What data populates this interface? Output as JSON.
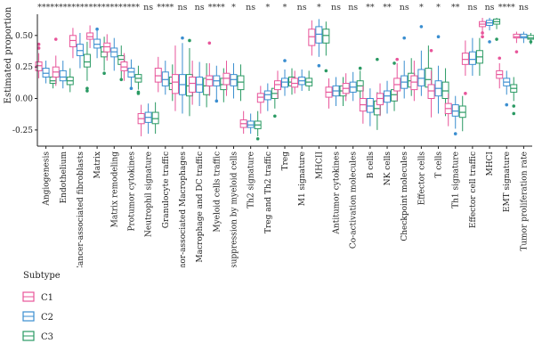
{
  "chart_data": {
    "type": "box",
    "title": "",
    "xlabel": "",
    "ylabel": "Estimated proportion",
    "ylim": [
      -0.35,
      0.64
    ],
    "yticks": [
      -0.25,
      0,
      0.25,
      0.5
    ],
    "ytick_labels": [
      "-0.25",
      "0.00",
      "0.25",
      "0.50"
    ],
    "grid": false,
    "legend_position": "bottom-left",
    "legend_title": "Subtype",
    "series": [
      {
        "name": "C1",
        "color": "#e8559a"
      },
      {
        "name": "C2",
        "color": "#3a8ed0"
      },
      {
        "name": "C3",
        "color": "#2a9a63"
      }
    ],
    "categories": [
      "Angiogenesis",
      "Endothelium",
      "Cancer-associated fibroblasts",
      "Matrix",
      "Matrix remodeling",
      "Protumor cytokines",
      "Neutrophil signature",
      "Granulocyte traffic",
      "Tumor-associated Macrophages",
      "Macrophage and DC traffic",
      "Myeloid cells traffic",
      "Immune suppression by myeloid cells",
      "Th2 signature",
      "Treg and Th2 traffic",
      "Treg",
      "M1 signature",
      "MHCII",
      "Antitumor cytokines",
      "Co-activation molecules",
      "B cells",
      "NK cells",
      "Checkpoint molecules",
      "Effector cells",
      "T cells",
      "Th1 signature",
      "Effector cell traffic",
      "MHCI",
      "EMT signature",
      "Tumor proliferation rate"
    ],
    "significance": [
      "****",
      "****",
      "****",
      "****",
      "****",
      "****",
      "ns",
      "****",
      "ns",
      "ns",
      "****",
      "*",
      "ns",
      "*",
      "*",
      "ns",
      "*",
      "ns",
      "ns",
      "**",
      "**",
      "ns",
      "*",
      "*",
      "**",
      "ns",
      "ns",
      "****",
      "ns"
    ],
    "boxes": [
      [
        [
          0.16,
          0.22,
          0.26,
          0.29,
          0.36
        ],
        [
          0.12,
          0.17,
          0.2,
          0.24,
          0.3
        ],
        [
          0.08,
          0.12,
          0.14,
          0.17,
          0.22
        ]
      ],
      [
        [
          0.1,
          0.17,
          0.21,
          0.25,
          0.34
        ],
        [
          0.08,
          0.14,
          0.17,
          0.22,
          0.3
        ],
        [
          0.05,
          0.11,
          0.14,
          0.17,
          0.24
        ]
      ],
      [
        [
          0.32,
          0.41,
          0.46,
          0.5,
          0.56
        ],
        [
          0.24,
          0.34,
          0.38,
          0.43,
          0.52
        ],
        [
          0.14,
          0.25,
          0.29,
          0.35,
          0.45
        ]
      ],
      [
        [
          0.4,
          0.47,
          0.49,
          0.52,
          0.58
        ],
        [
          0.32,
          0.4,
          0.43,
          0.47,
          0.54
        ],
        [
          0.22,
          0.33,
          0.37,
          0.41,
          0.49
        ]
      ],
      [
        [
          0.3,
          0.37,
          0.41,
          0.44,
          0.51
        ],
        [
          0.22,
          0.33,
          0.37,
          0.4,
          0.48
        ],
        [
          0.15,
          0.27,
          0.31,
          0.34,
          0.42
        ]
      ],
      [
        [
          0.14,
          0.22,
          0.25,
          0.29,
          0.36
        ],
        [
          0.09,
          0.17,
          0.21,
          0.24,
          0.31
        ],
        [
          0.07,
          0.13,
          0.16,
          0.19,
          0.26
        ]
      ],
      [
        [
          -0.3,
          -0.2,
          -0.16,
          -0.12,
          -0.05
        ],
        [
          -0.28,
          -0.19,
          -0.15,
          -0.11,
          -0.04
        ],
        [
          -0.28,
          -0.2,
          -0.16,
          -0.11,
          -0.03
        ]
      ],
      [
        [
          0.05,
          0.13,
          0.18,
          0.24,
          0.33
        ],
        [
          0.03,
          0.1,
          0.15,
          0.21,
          0.3
        ],
        [
          -0.02,
          0.07,
          0.12,
          0.17,
          0.27
        ]
      ],
      [
        [
          -0.1,
          0.04,
          0.13,
          0.19,
          0.42
        ],
        [
          -0.12,
          0.03,
          0.11,
          0.19,
          0.44
        ],
        [
          -0.14,
          0.02,
          0.1,
          0.19,
          0.4
        ]
      ],
      [
        [
          -0.05,
          0.05,
          0.12,
          0.17,
          0.3
        ],
        [
          -0.06,
          0.05,
          0.11,
          0.17,
          0.29
        ],
        [
          -0.07,
          0.03,
          0.1,
          0.16,
          0.28
        ]
      ],
      [
        [
          0.02,
          0.1,
          0.15,
          0.18,
          0.28
        ],
        [
          -0.01,
          0.1,
          0.14,
          0.18,
          0.26
        ],
        [
          -0.03,
          0.07,
          0.11,
          0.16,
          0.24
        ]
      ],
      [
        [
          0.02,
          0.11,
          0.16,
          0.2,
          0.3
        ],
        [
          0.0,
          0.1,
          0.15,
          0.19,
          0.28
        ],
        [
          -0.02,
          0.07,
          0.13,
          0.18,
          0.27
        ]
      ],
      [
        [
          -0.28,
          -0.23,
          -0.2,
          -0.17,
          -0.1
        ],
        [
          -0.28,
          -0.23,
          -0.21,
          -0.18,
          -0.12
        ],
        [
          -0.3,
          -0.24,
          -0.21,
          -0.18,
          -0.1
        ]
      ],
      [
        [
          -0.12,
          -0.03,
          0.01,
          0.04,
          0.1
        ],
        [
          -0.1,
          -0.01,
          0.03,
          0.06,
          0.12
        ],
        [
          -0.08,
          0.0,
          0.04,
          0.08,
          0.14
        ]
      ],
      [
        [
          0.0,
          0.07,
          0.11,
          0.14,
          0.22
        ],
        [
          0.02,
          0.09,
          0.13,
          0.16,
          0.23
        ],
        [
          0.03,
          0.1,
          0.13,
          0.17,
          0.24
        ]
      ],
      [
        [
          0.04,
          0.09,
          0.12,
          0.16,
          0.22
        ],
        [
          0.06,
          0.11,
          0.14,
          0.17,
          0.23
        ],
        [
          0.06,
          0.1,
          0.13,
          0.16,
          0.22
        ]
      ],
      [
        [
          0.34,
          0.42,
          0.49,
          0.55,
          0.62
        ],
        [
          0.33,
          0.44,
          0.51,
          0.57,
          0.63
        ],
        [
          0.34,
          0.44,
          0.5,
          0.55,
          0.61
        ]
      ],
      [
        [
          -0.08,
          0.01,
          0.05,
          0.09,
          0.16
        ],
        [
          -0.06,
          0.02,
          0.06,
          0.1,
          0.17
        ],
        [
          -0.06,
          0.02,
          0.06,
          0.1,
          0.17
        ]
      ],
      [
        [
          -0.02,
          0.04,
          0.08,
          0.12,
          0.2
        ],
        [
          -0.02,
          0.05,
          0.09,
          0.13,
          0.21
        ],
        [
          0.0,
          0.06,
          0.1,
          0.14,
          0.22
        ]
      ],
      [
        [
          -0.2,
          -0.1,
          -0.05,
          0.0,
          0.1
        ],
        [
          -0.22,
          -0.11,
          -0.06,
          0.0,
          0.08
        ],
        [
          -0.25,
          -0.13,
          -0.08,
          -0.02,
          0.05
        ]
      ],
      [
        [
          -0.14,
          -0.05,
          0.0,
          0.04,
          0.12
        ],
        [
          -0.12,
          -0.03,
          0.02,
          0.06,
          0.14
        ],
        [
          -0.1,
          -0.02,
          0.03,
          0.07,
          0.15
        ]
      ],
      [
        [
          -0.02,
          0.06,
          0.11,
          0.16,
          0.28
        ],
        [
          0.0,
          0.08,
          0.13,
          0.18,
          0.3
        ],
        [
          0.02,
          0.09,
          0.14,
          0.2,
          0.32
        ]
      ],
      [
        [
          -0.02,
          0.07,
          0.13,
          0.18,
          0.3
        ],
        [
          0.02,
          0.1,
          0.16,
          0.23,
          0.38
        ],
        [
          0.0,
          0.09,
          0.15,
          0.24,
          0.42
        ]
      ],
      [
        [
          -0.15,
          0.0,
          0.06,
          0.11,
          0.22
        ],
        [
          -0.12,
          0.02,
          0.08,
          0.14,
          0.26
        ],
        [
          -0.14,
          0.0,
          0.06,
          0.13,
          0.24
        ]
      ],
      [
        [
          -0.22,
          -0.12,
          -0.08,
          -0.04,
          0.04
        ],
        [
          -0.24,
          -0.14,
          -0.1,
          -0.05,
          0.02
        ],
        [
          -0.26,
          -0.15,
          -0.11,
          -0.06,
          0.02
        ]
      ],
      [
        [
          0.18,
          0.27,
          0.31,
          0.36,
          0.46
        ],
        [
          0.18,
          0.27,
          0.31,
          0.37,
          0.48
        ],
        [
          0.18,
          0.28,
          0.33,
          0.38,
          0.48
        ]
      ],
      [
        [
          0.52,
          0.57,
          0.59,
          0.61,
          0.64
        ],
        [
          0.54,
          0.58,
          0.6,
          0.62,
          0.64
        ],
        [
          0.55,
          0.59,
          0.61,
          0.63,
          0.64
        ]
      ],
      [
        [
          0.08,
          0.16,
          0.19,
          0.22,
          0.28
        ],
        [
          0.03,
          0.1,
          0.13,
          0.16,
          0.22
        ],
        [
          -0.02,
          0.05,
          0.08,
          0.11,
          0.17
        ]
      ],
      [
        [
          0.44,
          0.48,
          0.49,
          0.51,
          0.53
        ],
        [
          0.44,
          0.48,
          0.49,
          0.51,
          0.53
        ],
        [
          0.43,
          0.47,
          0.48,
          0.5,
          0.52
        ]
      ]
    ],
    "outliers": [
      [
        0,
        0,
        0.4
      ],
      [
        0,
        0,
        0.43
      ],
      [
        1,
        0,
        0.47
      ],
      [
        2,
        2,
        0.06
      ],
      [
        2,
        2,
        0.08
      ],
      [
        3,
        1,
        0.55
      ],
      [
        3,
        2,
        0.2
      ],
      [
        4,
        2,
        0.15
      ],
      [
        5,
        1,
        0.08
      ],
      [
        5,
        2,
        0.04
      ],
      [
        5,
        2,
        0.05
      ],
      [
        8,
        1,
        0.48
      ],
      [
        8,
        2,
        0.46
      ],
      [
        10,
        0,
        0.44
      ],
      [
        10,
        1,
        -0.02
      ],
      [
        12,
        2,
        -0.32
      ],
      [
        13,
        2,
        -0.14
      ],
      [
        14,
        1,
        0.3
      ],
      [
        16,
        2,
        0.22
      ],
      [
        16,
        1,
        0.26
      ],
      [
        18,
        2,
        0.24
      ],
      [
        19,
        2,
        0.31
      ],
      [
        20,
        2,
        0.28
      ],
      [
        21,
        0,
        0.31
      ],
      [
        21,
        1,
        0.48
      ],
      [
        22,
        1,
        0.57
      ],
      [
        23,
        0,
        0.38
      ],
      [
        23,
        1,
        0.49
      ],
      [
        24,
        1,
        -0.28
      ],
      [
        25,
        0,
        0.04
      ],
      [
        26,
        0,
        0.49
      ],
      [
        26,
        0,
        0.52
      ],
      [
        26,
        1,
        0.45
      ],
      [
        26,
        2,
        0.47
      ],
      [
        27,
        0,
        0.32
      ],
      [
        27,
        1,
        -0.05
      ],
      [
        27,
        2,
        -0.06
      ],
      [
        27,
        2,
        -0.12
      ],
      [
        28,
        0,
        0.37
      ],
      [
        28,
        2,
        0.45
      ]
    ]
  }
}
